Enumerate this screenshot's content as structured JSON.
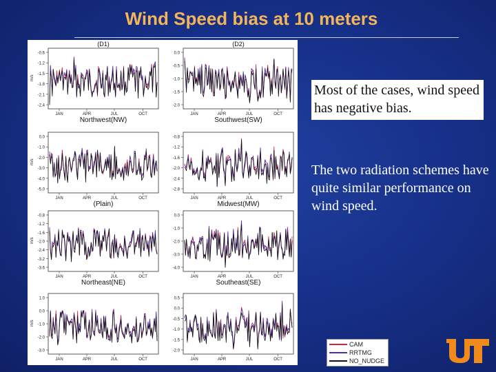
{
  "slide": {
    "title": "Wind Speed bias at 10 meters",
    "bullets": [
      "Most of the cases, wind speed has negative bias.",
      "The two radiation schemes have quite similar performance on wind speed."
    ]
  },
  "colors": {
    "title": "#f3b55a",
    "CAM": "#d6203c",
    "RRTMG": "#4b2bb5",
    "NO_NUDGE": "#111111",
    "logo": "#f08a1c"
  },
  "legend": {
    "items": [
      {
        "label": "CAM",
        "color": "#d6203c"
      },
      {
        "label": "RRTMG",
        "color": "#4b2bb5"
      },
      {
        "label": "NO_NUDGE",
        "color": "#111111"
      }
    ]
  },
  "chart_data": [
    {
      "type": "line",
      "title": "(D1)",
      "xlabel": "Northwest(NW)",
      "ylabel": "m/s",
      "categories": [
        "JAN",
        "APR",
        "JUL",
        "OCT"
      ],
      "yticks": [
        "-0.6",
        "-1.2",
        "-1.5",
        "-1.8",
        "-2.1",
        "-2.4"
      ],
      "series": [
        {
          "name": "CAM"
        },
        {
          "name": "RRTMG"
        },
        {
          "name": "NO_NUDGE"
        }
      ]
    },
    {
      "type": "line",
      "title": "(D2)",
      "xlabel": "Southwest(SW)",
      "ylabel": "",
      "categories": [
        "JAN",
        "APR",
        "JUL",
        "OCT"
      ],
      "yticks": [
        "0.0",
        "-0.5",
        "-1.0",
        "-1.5",
        "-2.0"
      ],
      "series": [
        {
          "name": "CAM"
        },
        {
          "name": "RRTMG"
        },
        {
          "name": "NO_NUDGE"
        }
      ]
    },
    {
      "type": "line",
      "title": "",
      "xlabel": "(Plain)",
      "ylabel": "m/s",
      "categories": [
        "JAN",
        "APR",
        "JUL",
        "OCT"
      ],
      "yticks": [
        "0.0",
        "-1.0",
        "-2.0",
        "-3.0",
        "-4.0",
        "-5.0"
      ],
      "series": [
        {
          "name": "CAM"
        },
        {
          "name": "RRTMG"
        },
        {
          "name": "NO_NUDGE"
        }
      ]
    },
    {
      "type": "line",
      "title": "",
      "xlabel": "Midwest(MW)",
      "ylabel": "",
      "categories": [
        "JAN",
        "APR",
        "JUL",
        "OCT"
      ],
      "yticks": [
        "-0.8",
        "-1.2",
        "-1.6",
        "-2.0",
        "-2.4",
        "-2.8"
      ],
      "series": [
        {
          "name": "CAM"
        },
        {
          "name": "RRTMG"
        },
        {
          "name": "NO_NUDGE"
        }
      ]
    },
    {
      "type": "line",
      "title": "",
      "xlabel": "Northeast(NE)",
      "ylabel": "m/s",
      "categories": [
        "JAN",
        "APR",
        "JUL",
        "OCT"
      ],
      "yticks": [
        "-0.8",
        "-1.2",
        "-1.6",
        "-2.0",
        "-2.4",
        "-3.2",
        "-3.6"
      ],
      "series": [
        {
          "name": "CAM"
        },
        {
          "name": "RRTMG"
        },
        {
          "name": "NO_NUDGE"
        }
      ]
    },
    {
      "type": "line",
      "title": "",
      "xlabel": "Southeast(SE)",
      "ylabel": "",
      "categories": [
        "JAN",
        "APR",
        "JUL",
        "OCT"
      ],
      "yticks": [
        "0.0",
        "-1.0",
        "-2.0",
        "-3.0",
        "-4.0"
      ],
      "series": [
        {
          "name": "CAM"
        },
        {
          "name": "RRTMG"
        },
        {
          "name": "NO_NUDGE"
        }
      ]
    },
    {
      "type": "line",
      "title": "",
      "xlabel": "",
      "ylabel": "m/s",
      "categories": [
        "JAN",
        "APR",
        "JUL",
        "OCT"
      ],
      "yticks": [
        "1.0",
        "0.0",
        "-1.0",
        "-2.0",
        "-3.0"
      ],
      "series": [
        {
          "name": "CAM"
        },
        {
          "name": "RRTMG"
        },
        {
          "name": "NO_NUDGE"
        }
      ]
    },
    {
      "type": "line",
      "title": "",
      "xlabel": "",
      "ylabel": "",
      "categories": [
        "JAN",
        "APR",
        "JUL",
        "OCT"
      ],
      "yticks": [
        "0.5",
        "0.0",
        "-0.5",
        "-1.0",
        "-1.5",
        "-2.0"
      ],
      "series": [
        {
          "name": "CAM"
        },
        {
          "name": "RRTMG"
        },
        {
          "name": "NO_NUDGE"
        }
      ]
    }
  ]
}
